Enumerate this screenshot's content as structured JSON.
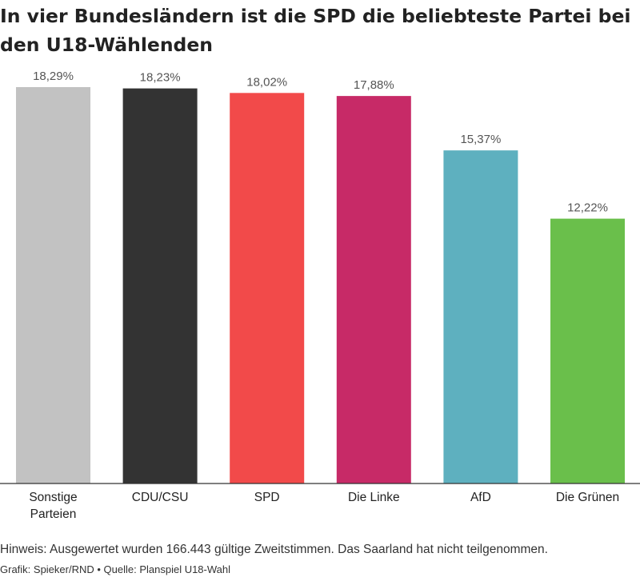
{
  "title": "In vier Bundesländern ist die SPD die beliebteste Partei bei den U18-Wählenden",
  "note": "Hinweis: Ausgewertet wurden 166.443 gültige Zweitstimmen. Das Saarland hat nicht teilgenommen.",
  "credit": "Grafik: Spieker/RND • Quelle: Planspiel U18-Wahl",
  "chart_data": {
    "type": "bar",
    "title": "In vier Bundesländern ist die SPD die beliebteste Partei bei den U18-Wählenden",
    "xlabel": "",
    "ylabel": "",
    "ylim": [
      0,
      18.29
    ],
    "grid": false,
    "categories": [
      [
        "Sonstige",
        "Parteien"
      ],
      [
        "CDU/CSU"
      ],
      [
        "SPD"
      ],
      [
        "Die Linke"
      ],
      [
        "AfD"
      ],
      [
        "Die Grünen"
      ]
    ],
    "values": [
      18.29,
      18.23,
      18.02,
      17.88,
      15.37,
      12.22
    ],
    "value_labels": [
      "18,29%",
      "18,23%",
      "18,02%",
      "17,88%",
      "15,37%",
      "12,22%"
    ],
    "colors": [
      "#c2c2c2",
      "#333333",
      "#f24a4a",
      "#c72a67",
      "#5eb0bf",
      "#6abf4b"
    ]
  }
}
